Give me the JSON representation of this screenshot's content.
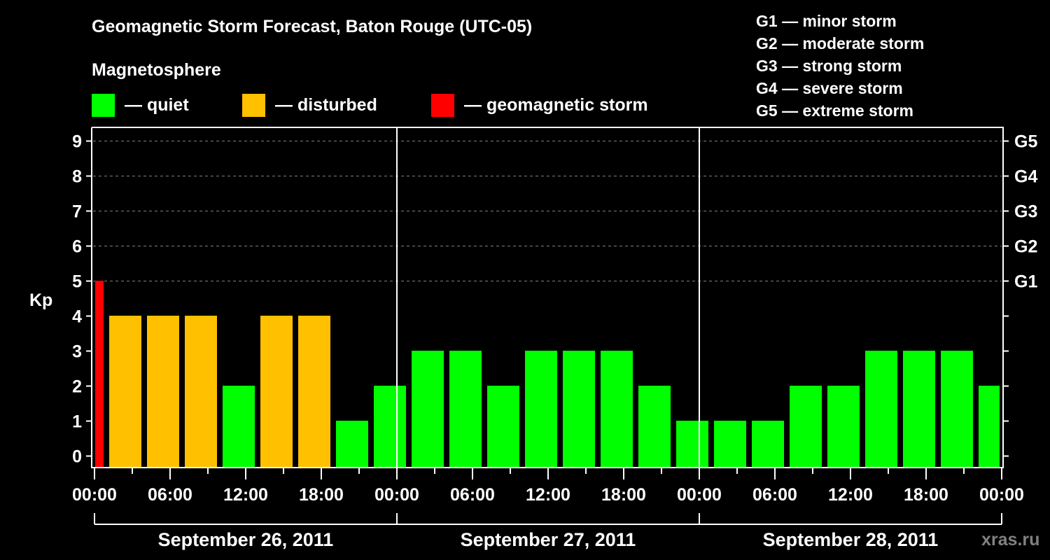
{
  "header": {
    "title": "Geomagnetic Storm Forecast, Baton Rouge (UTC-05)",
    "subtitle": "Magnetosphere"
  },
  "legend": [
    {
      "label": "— quiet",
      "color": "#00ff00"
    },
    {
      "label": "— disturbed",
      "color": "#ffc000"
    },
    {
      "label": "— geomagnetic storm",
      "color": "#ff0000"
    }
  ],
  "g_scale": [
    "G1 — minor storm",
    "G2 — moderate storm",
    "G3 — strong storm",
    "G4 — severe storm",
    "G5 — extreme storm"
  ],
  "watermark": "xras.ru",
  "colors": {
    "quiet": "#00ff00",
    "disturbed": "#ffc000",
    "storm": "#ff0000",
    "background": "#000000",
    "axis": "#ffffff",
    "grid": "#808080"
  },
  "chart_data": {
    "type": "bar",
    "title": "Geomagnetic Storm Forecast, Baton Rouge (UTC-05)",
    "xlabel": "",
    "ylabel": "Kp",
    "ylim": [
      0,
      9
    ],
    "y_ticks": [
      0,
      1,
      2,
      3,
      4,
      5,
      6,
      7,
      8,
      9
    ],
    "right_axis_labels": {
      "5": "G1",
      "6": "G2",
      "7": "G3",
      "8": "G4",
      "9": "G5"
    },
    "grid": "horizontal dashed at Kp 5-9",
    "x_tick_labels": [
      "00:00",
      "06:00",
      "12:00",
      "18:00",
      "00:00",
      "06:00",
      "12:00",
      "18:00",
      "00:00",
      "06:00",
      "12:00",
      "18:00",
      "00:00"
    ],
    "day_labels": [
      "September 26, 2011",
      "September 27, 2011",
      "September 28, 2011"
    ],
    "interval_hours": 3,
    "first_bar_start_hour": -2,
    "bars": [
      {
        "start": "Sep 25 22:00",
        "kp": 5,
        "status": "storm"
      },
      {
        "start": "Sep 26 01:00",
        "kp": 4,
        "status": "disturbed"
      },
      {
        "start": "Sep 26 04:00",
        "kp": 4,
        "status": "disturbed"
      },
      {
        "start": "Sep 26 07:00",
        "kp": 4,
        "status": "disturbed"
      },
      {
        "start": "Sep 26 10:00",
        "kp": 2,
        "status": "quiet"
      },
      {
        "start": "Sep 26 13:00",
        "kp": 4,
        "status": "disturbed"
      },
      {
        "start": "Sep 26 16:00",
        "kp": 4,
        "status": "disturbed"
      },
      {
        "start": "Sep 26 19:00",
        "kp": 1,
        "status": "quiet"
      },
      {
        "start": "Sep 26 22:00",
        "kp": 2,
        "status": "quiet"
      },
      {
        "start": "Sep 27 01:00",
        "kp": 3,
        "status": "quiet"
      },
      {
        "start": "Sep 27 04:00",
        "kp": 3,
        "status": "quiet"
      },
      {
        "start": "Sep 27 07:00",
        "kp": 2,
        "status": "quiet"
      },
      {
        "start": "Sep 27 10:00",
        "kp": 3,
        "status": "quiet"
      },
      {
        "start": "Sep 27 13:00",
        "kp": 3,
        "status": "quiet"
      },
      {
        "start": "Sep 27 16:00",
        "kp": 3,
        "status": "quiet"
      },
      {
        "start": "Sep 27 19:00",
        "kp": 2,
        "status": "quiet"
      },
      {
        "start": "Sep 27 22:00",
        "kp": 1,
        "status": "quiet"
      },
      {
        "start": "Sep 28 01:00",
        "kp": 1,
        "status": "quiet"
      },
      {
        "start": "Sep 28 04:00",
        "kp": 1,
        "status": "quiet"
      },
      {
        "start": "Sep 28 07:00",
        "kp": 2,
        "status": "quiet"
      },
      {
        "start": "Sep 28 10:00",
        "kp": 2,
        "status": "quiet"
      },
      {
        "start": "Sep 28 13:00",
        "kp": 3,
        "status": "quiet"
      },
      {
        "start": "Sep 28 16:00",
        "kp": 3,
        "status": "quiet"
      },
      {
        "start": "Sep 28 19:00",
        "kp": 3,
        "status": "quiet"
      },
      {
        "start": "Sep 28 22:00",
        "kp": 2,
        "status": "quiet"
      }
    ],
    "categories": [
      "Sep25 22:00",
      "Sep26 01:00",
      "04:00",
      "07:00",
      "10:00",
      "13:00",
      "16:00",
      "19:00",
      "22:00",
      "Sep27 01:00",
      "04:00",
      "07:00",
      "10:00",
      "13:00",
      "16:00",
      "19:00",
      "22:00",
      "Sep28 01:00",
      "04:00",
      "07:00",
      "10:00",
      "13:00",
      "16:00",
      "19:00",
      "22:00"
    ],
    "values": [
      5,
      4,
      4,
      4,
      2,
      4,
      4,
      1,
      2,
      3,
      3,
      2,
      3,
      3,
      3,
      2,
      1,
      1,
      1,
      2,
      2,
      3,
      3,
      3,
      2
    ]
  }
}
